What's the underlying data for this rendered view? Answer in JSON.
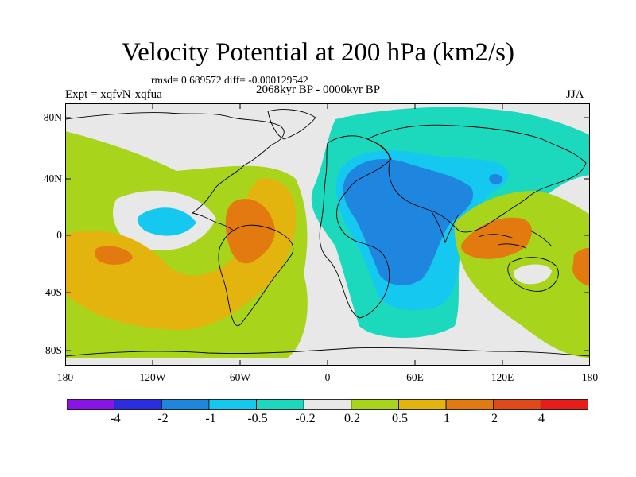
{
  "title": "Velocity Potential at 200 hPa (km2/s)",
  "stats_line": "rmsd= 0.689572 diff= -0.000129542",
  "experiment": "Expt = xqfvN-xqfua",
  "period": "2068kyr BP - 0000kyr BP",
  "season": "JJA",
  "lat_labels": [
    "80N",
    "40N",
    "0",
    "40S",
    "80S"
  ],
  "lon_labels": [
    "180",
    "120W",
    "60W",
    "0",
    "60E",
    "120E",
    "180"
  ],
  "colorbar": {
    "labels": [
      "-4",
      "-2",
      "-1",
      "-0.5",
      "-0.2",
      "0.2",
      "0.5",
      "1",
      "2",
      "4"
    ],
    "colors": [
      "#8a14e8",
      "#2a2ee0",
      "#1f86e0",
      "#14c8ef",
      "#1cd9bd",
      "#e8e8e8",
      "#a9d41c",
      "#e3b40e",
      "#e27a10",
      "#e04a1a",
      "#e61e1a"
    ]
  },
  "colors": {
    "background_field": "#e8e8e8",
    "neg_small": "#1cd9bd",
    "neg_mid": "#14c8ef",
    "neg_large": "#1f86e0",
    "pos_small": "#a9d41c",
    "pos_mid": "#e3b40e",
    "pos_large": "#e27a10"
  }
}
